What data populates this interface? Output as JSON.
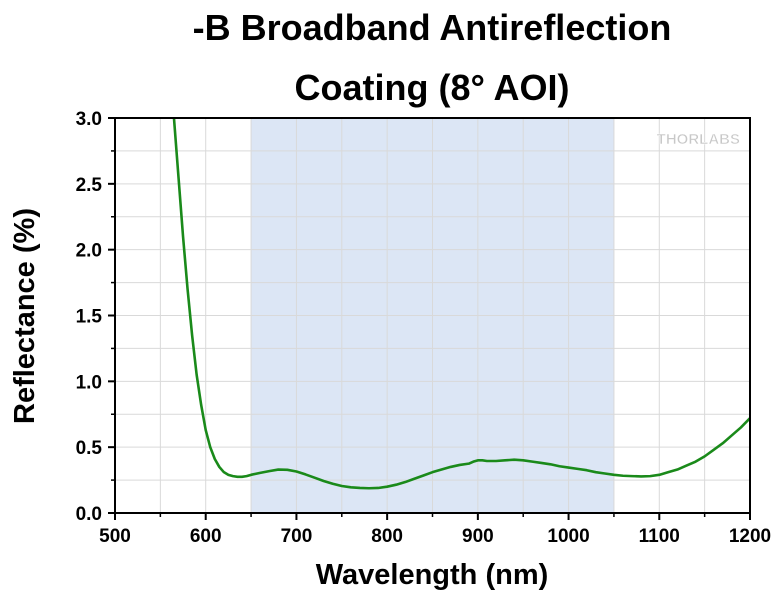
{
  "chart_data": {
    "type": "line",
    "title_lines": [
      "-B Broadband Antireflection",
      "Coating (8° AOI)"
    ],
    "xlabel": "Wavelength (nm)",
    "ylabel": "Reflectance (%)",
    "xlim": [
      500,
      1200
    ],
    "ylim": [
      0.0,
      3.0
    ],
    "x_ticks": [
      500,
      600,
      700,
      800,
      900,
      1000,
      1100,
      1200
    ],
    "x_tick_labels": [
      "500",
      "600",
      "700",
      "800",
      "900",
      "1000",
      "1100",
      "1200"
    ],
    "y_ticks": [
      0.0,
      0.5,
      1.0,
      1.5,
      2.0,
      2.5,
      3.0
    ],
    "y_tick_labels": [
      "0.0",
      "0.5",
      "1.0",
      "1.5",
      "2.0",
      "2.5",
      "3.0"
    ],
    "grid": true,
    "highlight_band": {
      "x_start": 650,
      "x_end": 1050,
      "color": "#dce6f5"
    },
    "watermark": "THORLABS",
    "series": [
      {
        "color": "#1a8a1a",
        "x": [
          565,
          570,
          575,
          580,
          585,
          590,
          595,
          600,
          605,
          610,
          615,
          620,
          625,
          630,
          635,
          640,
          645,
          650,
          660,
          670,
          680,
          690,
          700,
          710,
          720,
          730,
          740,
          750,
          760,
          770,
          780,
          790,
          800,
          810,
          820,
          830,
          840,
          850,
          860,
          870,
          880,
          890,
          895,
          900,
          905,
          910,
          920,
          930,
          940,
          950,
          960,
          970,
          980,
          990,
          1000,
          1010,
          1020,
          1030,
          1040,
          1050,
          1060,
          1070,
          1080,
          1090,
          1100,
          1110,
          1120,
          1130,
          1140,
          1150,
          1160,
          1170,
          1180,
          1190,
          1200
        ],
        "y": [
          3.0,
          2.55,
          2.1,
          1.7,
          1.35,
          1.05,
          0.82,
          0.63,
          0.5,
          0.41,
          0.35,
          0.31,
          0.29,
          0.28,
          0.275,
          0.275,
          0.28,
          0.29,
          0.305,
          0.318,
          0.33,
          0.328,
          0.315,
          0.293,
          0.268,
          0.243,
          0.222,
          0.205,
          0.195,
          0.19,
          0.188,
          0.19,
          0.2,
          0.215,
          0.235,
          0.26,
          0.285,
          0.31,
          0.33,
          0.35,
          0.365,
          0.375,
          0.39,
          0.4,
          0.4,
          0.395,
          0.395,
          0.4,
          0.405,
          0.4,
          0.39,
          0.38,
          0.37,
          0.355,
          0.345,
          0.335,
          0.325,
          0.31,
          0.3,
          0.29,
          0.283,
          0.28,
          0.278,
          0.28,
          0.29,
          0.31,
          0.33,
          0.36,
          0.39,
          0.43,
          0.48,
          0.53,
          0.59,
          0.65,
          0.72
        ]
      }
    ]
  }
}
